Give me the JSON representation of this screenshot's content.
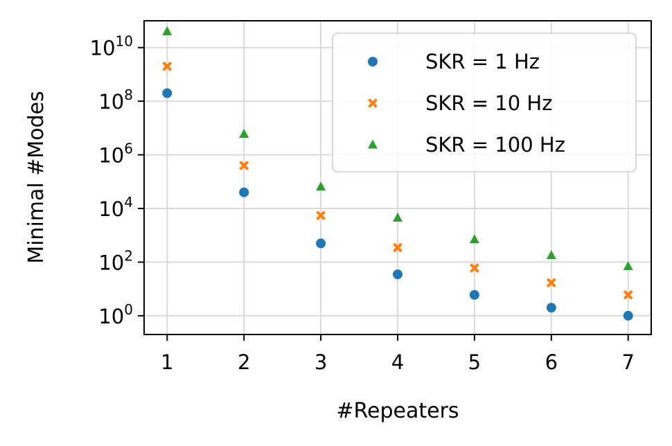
{
  "chart_data": {
    "type": "scatter",
    "title": "",
    "xlabel": "#Repeaters",
    "ylabel": "Minimal #Modes",
    "yscale": "log",
    "x": [
      1,
      2,
      3,
      4,
      5,
      6,
      7
    ],
    "xlim": [
      0.7,
      7.3
    ],
    "ylim": [
      0.2,
      100000000000
    ],
    "xticks": [
      "1",
      "2",
      "3",
      "4",
      "5",
      "6",
      "7"
    ],
    "yticks": [
      {
        "base": "10",
        "exp": "0",
        "value": 1
      },
      {
        "base": "10",
        "exp": "2",
        "value": 100
      },
      {
        "base": "10",
        "exp": "4",
        "value": 10000
      },
      {
        "base": "10",
        "exp": "6",
        "value": 1000000
      },
      {
        "base": "10",
        "exp": "8",
        "value": 100000000
      },
      {
        "base": "10",
        "exp": "10",
        "value": 10000000000
      }
    ],
    "grid": true,
    "legend_position": "top-right",
    "series": [
      {
        "name": "SKR = 1 Hz",
        "marker": "circle",
        "color": "#1f77b4",
        "values": [
          200000000,
          40000,
          500,
          35,
          6,
          2,
          1
        ]
      },
      {
        "name": "SKR = 10 Hz",
        "marker": "x",
        "color": "#ff7f0e",
        "values": [
          2000000000,
          400000,
          5500,
          350,
          60,
          17,
          6
        ]
      },
      {
        "name": "SKR = 100 Hz",
        "marker": "triangle",
        "color": "#2ca02c",
        "values": [
          40000000000,
          6000000,
          65000,
          4500,
          700,
          180,
          70
        ]
      }
    ]
  }
}
